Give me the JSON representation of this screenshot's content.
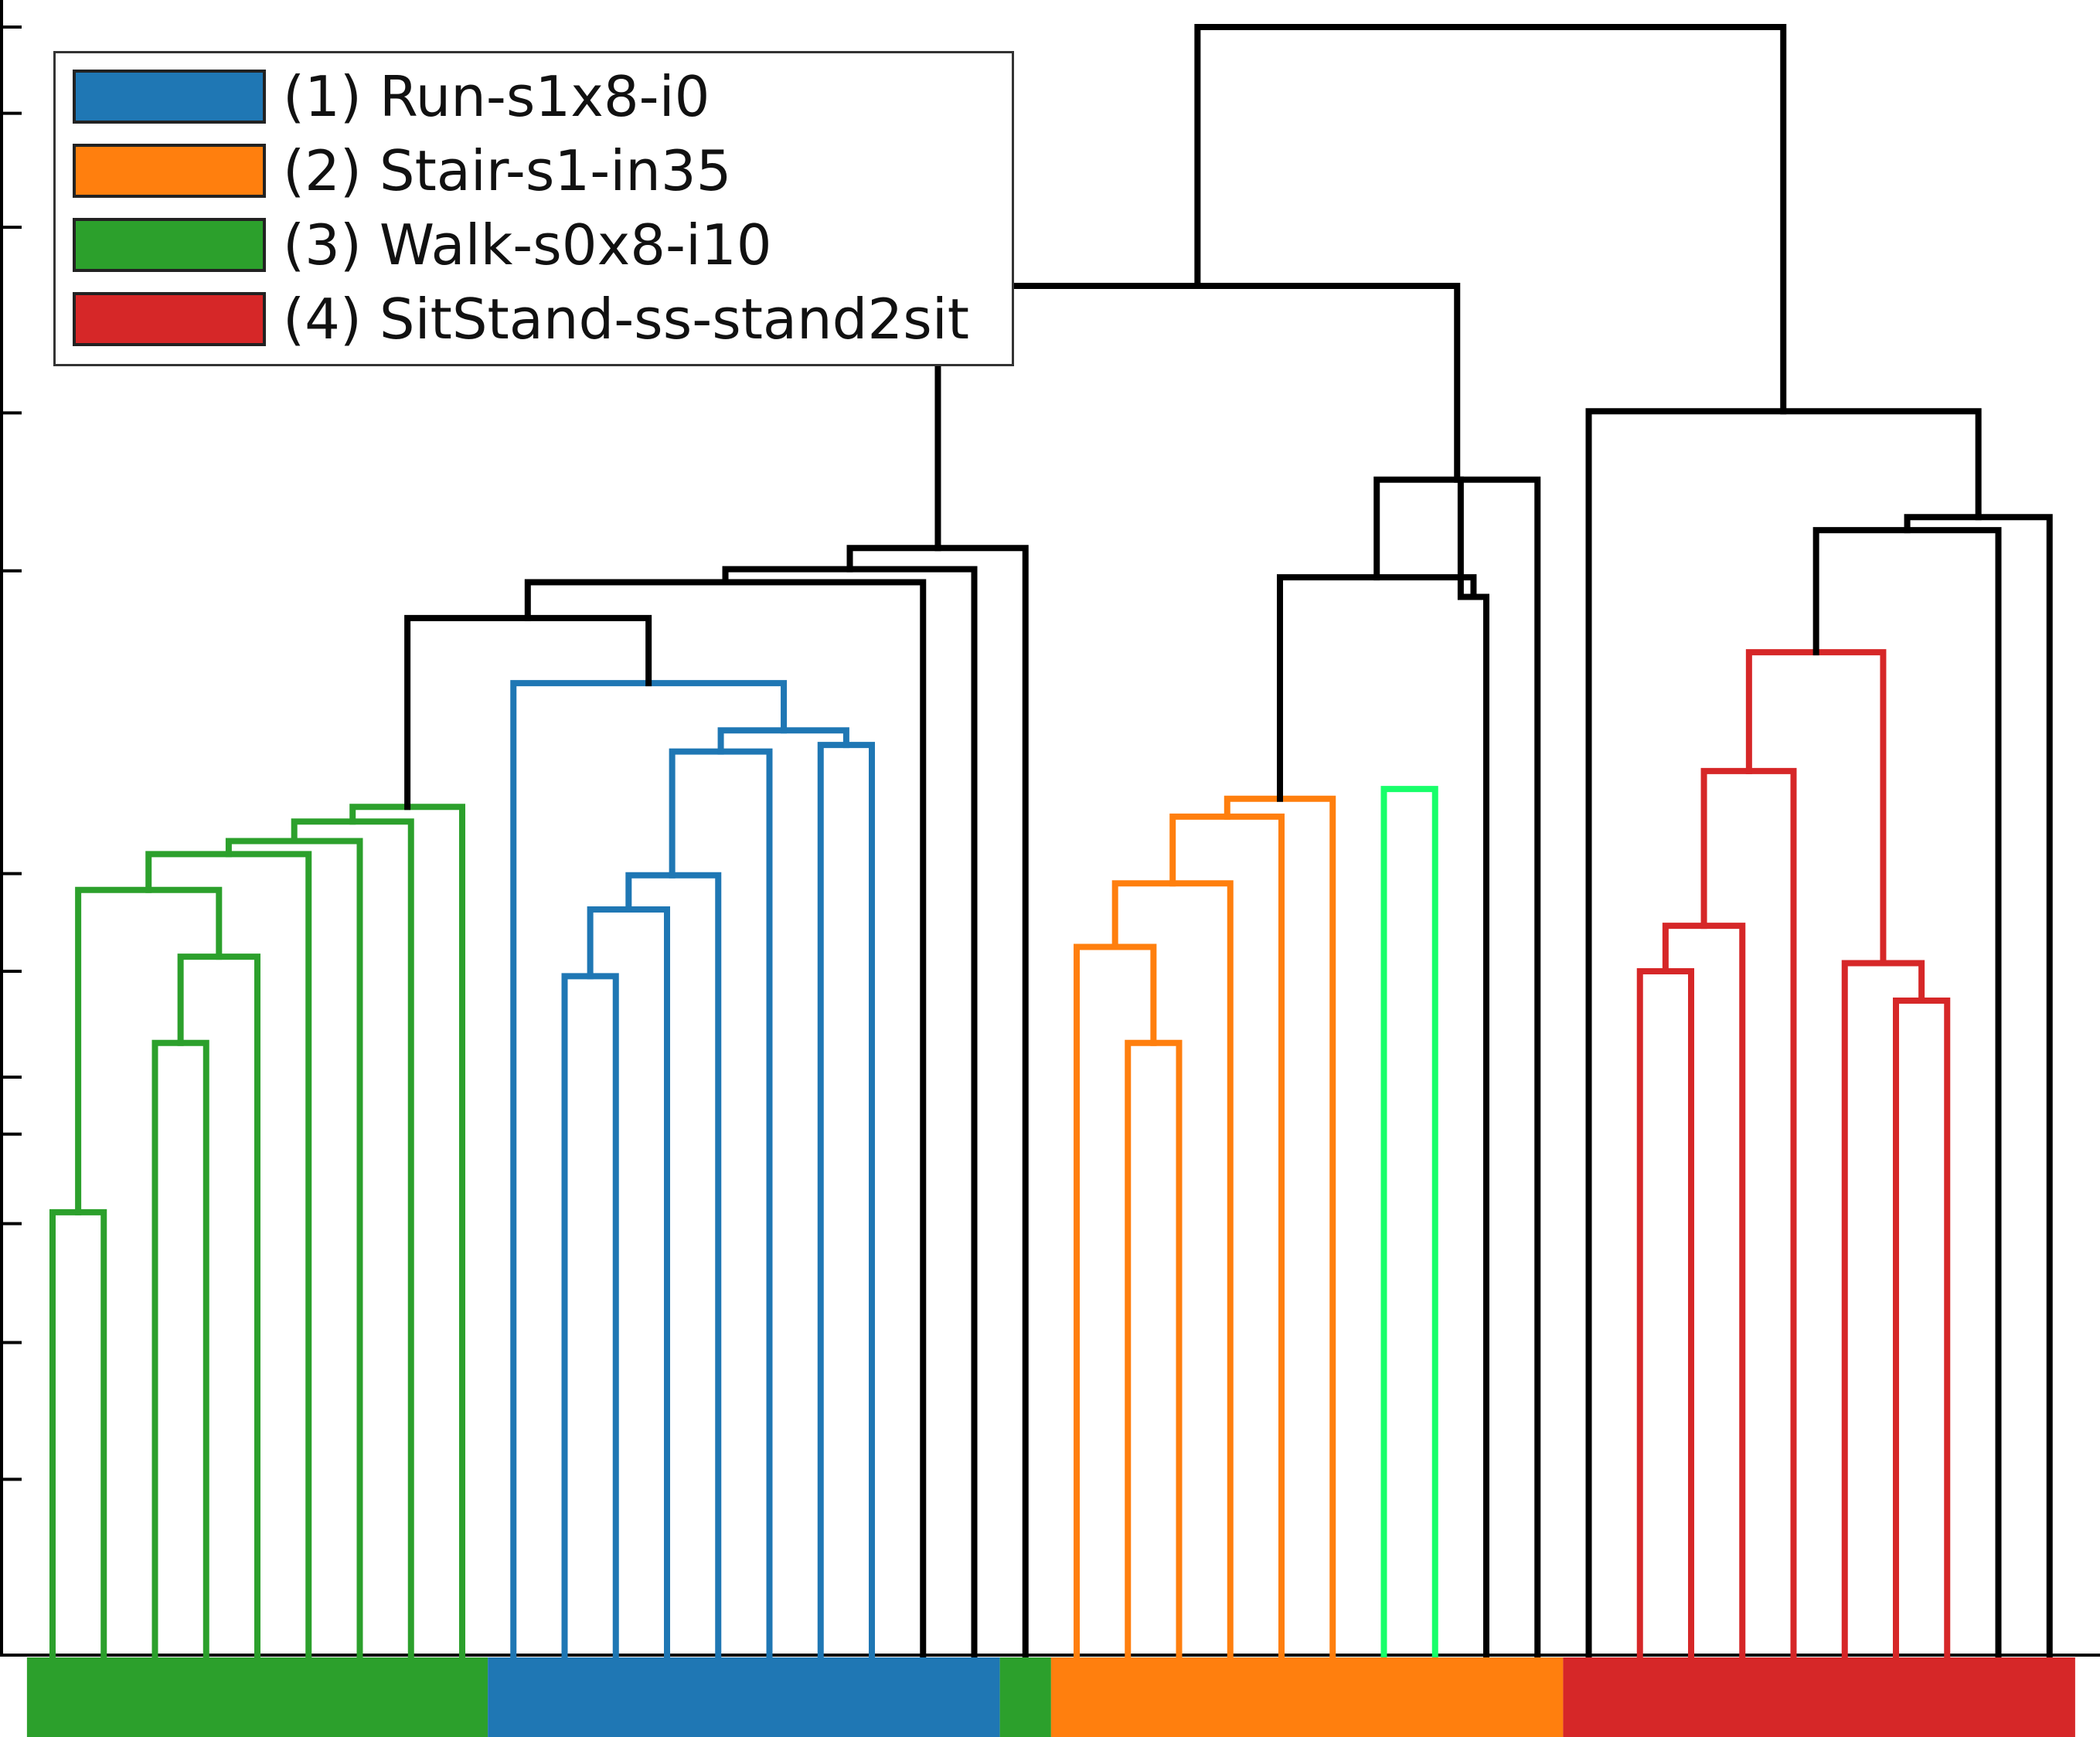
{
  "chart_data": {
    "type": "dendrogram",
    "title": "",
    "xlabel": "",
    "ylabel": "",
    "ylim": [
      0,
      1.0
    ],
    "y_tick_values": [
      0.0,
      0.108,
      0.192,
      0.265,
      0.32,
      0.355,
      0.42,
      0.48,
      0.666,
      0.763,
      0.877,
      0.947,
      1.0
    ],
    "leaf_count": 40,
    "legend": {
      "placement": "top-left",
      "entries": [
        {
          "label": "(1) Run-s1x8-i0",
          "color": "#1f77b4"
        },
        {
          "label": "(2) Stair-s1-in35",
          "color": "#ff7f0e"
        },
        {
          "label": "(3) Walk-s0x8-i10",
          "color": "#2ca02c"
        },
        {
          "label": "(4) SitStand-ss-stand2sit",
          "color": "#d62728"
        }
      ]
    },
    "colors": {
      "walk": "#2ca02c",
      "run": "#1f77b4",
      "stair": "#ff7f0e",
      "stair_light": "#18ff6a",
      "sitstand": "#d62728",
      "above_threshold": "#000000"
    },
    "links": [
      {
        "c": "walk",
        "x": [
          1,
          2
        ],
        "h": 0.272
      },
      {
        "c": "walk",
        "x": [
          3,
          4
        ],
        "h": 0.376
      },
      {
        "c": "walk",
        "x": [
          3.5,
          5
        ],
        "h": 0.429
      },
      {
        "c": "walk",
        "x": [
          1.5,
          4.25
        ],
        "h": 0.47
      },
      {
        "c": "walk",
        "x": [
          2.875,
          6
        ],
        "h": 0.492
      },
      {
        "c": "walk",
        "x": [
          4.44,
          7
        ],
        "h": 0.5
      },
      {
        "c": "walk",
        "x": [
          5.72,
          8
        ],
        "h": 0.512
      },
      {
        "c": "walk",
        "x": [
          6.86,
          9
        ],
        "h": 0.521
      },
      {
        "c": "run",
        "x": [
          11,
          12
        ],
        "h": 0.417
      },
      {
        "c": "run",
        "x": [
          11.5,
          13
        ],
        "h": 0.458
      },
      {
        "c": "run",
        "x": [
          12.25,
          14
        ],
        "h": 0.479
      },
      {
        "c": "run",
        "x": [
          13.1,
          15
        ],
        "h": 0.555
      },
      {
        "c": "run",
        "x": [
          16,
          17
        ],
        "h": 0.559
      },
      {
        "c": "run",
        "x": [
          14.05,
          16.5
        ],
        "h": 0.568
      },
      {
        "c": "run",
        "x": [
          10,
          15.28
        ],
        "h": 0.597
      },
      {
        "c": "above_threshold",
        "x": [
          7.93,
          12.64
        ],
        "h": 0.637
      },
      {
        "c": "above_threshold",
        "x": [
          10.28,
          18
        ],
        "h": 0.659
      },
      {
        "c": "above_threshold",
        "x": [
          14.14,
          19
        ],
        "h": 0.667
      },
      {
        "c": "above_threshold",
        "x": [
          16.57,
          20
        ],
        "h": 0.68
      },
      {
        "c": "stair",
        "x": [
          22,
          23
        ],
        "h": 0.376
      },
      {
        "c": "stair",
        "x": [
          21,
          22.5
        ],
        "h": 0.435
      },
      {
        "c": "stair",
        "x": [
          21.75,
          24
        ],
        "h": 0.474
      },
      {
        "c": "stair",
        "x": [
          22.875,
          25
        ],
        "h": 0.515
      },
      {
        "c": "stair",
        "x": [
          23.94,
          26
        ],
        "h": 0.526
      },
      {
        "c": "stair_light",
        "x": [
          27,
          28
        ],
        "h": 0.532
      },
      {
        "c": "above_threshold",
        "x": [
          28.5,
          29
        ],
        "h": 0.65
      },
      {
        "c": "above_threshold",
        "x": [
          24.97,
          28.75
        ],
        "h": 0.662
      },
      {
        "c": "above_threshold",
        "x": [
          26.86,
          30
        ],
        "h": 0.722
      },
      {
        "c": "above_threshold",
        "x": [
          18.29,
          28.43
        ],
        "h": 0.841
      },
      {
        "c": "sitstand",
        "x": [
          32,
          33
        ],
        "h": 0.42
      },
      {
        "c": "sitstand",
        "x": [
          32.5,
          34
        ],
        "h": 0.448
      },
      {
        "c": "sitstand",
        "x": [
          33.25,
          35
        ],
        "h": 0.543
      },
      {
        "c": "sitstand",
        "x": [
          37,
          38
        ],
        "h": 0.402
      },
      {
        "c": "sitstand",
        "x": [
          36,
          37.5
        ],
        "h": 0.425
      },
      {
        "c": "sitstand",
        "x": [
          34.13,
          36.75
        ],
        "h": 0.616
      },
      {
        "c": "above_threshold",
        "x": [
          35.44,
          39
        ],
        "h": 0.691
      },
      {
        "c": "above_threshold",
        "x": [
          37.22,
          40
        ],
        "h": 0.699
      },
      {
        "c": "above_threshold",
        "x": [
          31,
          38.61
        ],
        "h": 0.764
      },
      {
        "c": "above_threshold",
        "x": [
          23.36,
          34.8
        ],
        "h": 1.0
      }
    ],
    "leaf_bar": [
      {
        "c": "walk",
        "from": 0.5,
        "to": 9.5
      },
      {
        "c": "run",
        "from": 9.5,
        "to": 19.5
      },
      {
        "c": "walk",
        "from": 19.5,
        "to": 20.5
      },
      {
        "c": "stair",
        "from": 20.5,
        "to": 30.5
      },
      {
        "c": "sitstand",
        "from": 30.5,
        "to": 40.5
      }
    ]
  }
}
